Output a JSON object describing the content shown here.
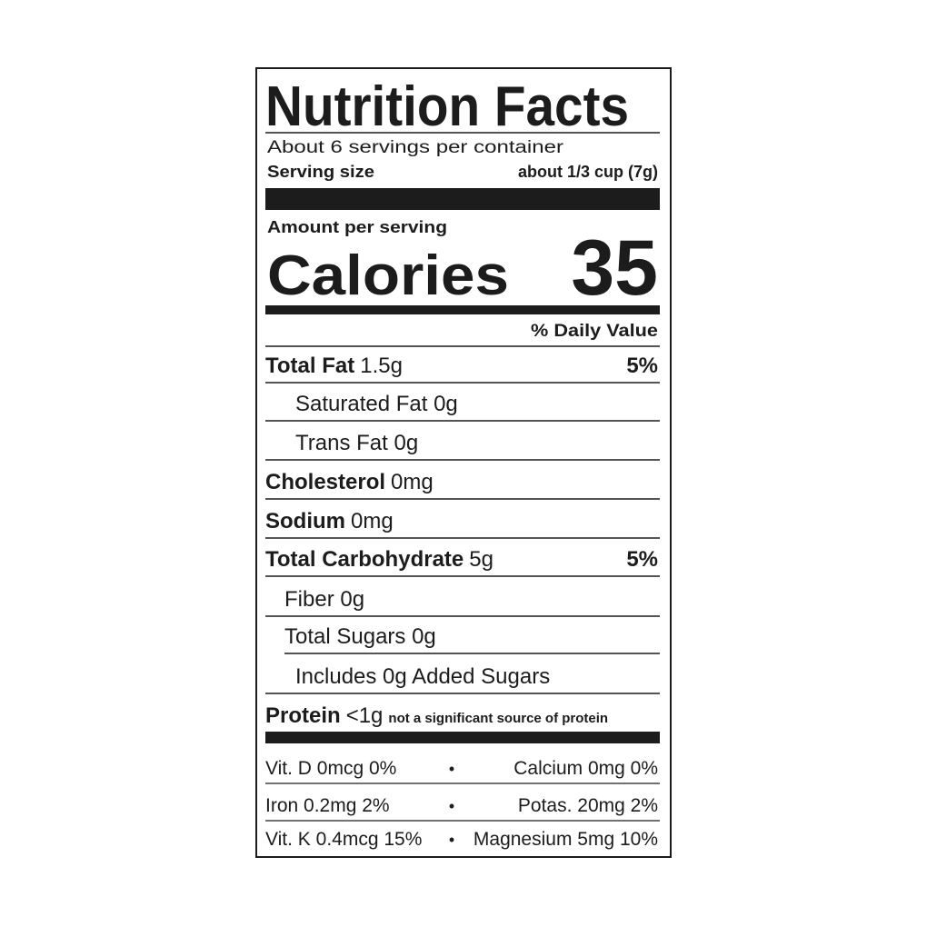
{
  "title": "Nutrition Facts",
  "servings": "About 6 servings per container",
  "serving_size": {
    "label": "Serving size",
    "value": "about 1/3 cup (7g)"
  },
  "amount_per_serving": "Amount per serving",
  "calories": {
    "label": "Calories",
    "value": "35"
  },
  "daily_value_header": "% Daily Value",
  "nutrients": [
    {
      "name": "Total Fat",
      "amount": "1.5g",
      "dv": "5%"
    },
    {
      "text": "Saturated Fat 0g"
    },
    {
      "text": "Trans Fat 0g"
    },
    {
      "name": "Cholesterol",
      "amount": "0mg"
    },
    {
      "name": "Sodium",
      "amount": "0mg"
    },
    {
      "name": "Total Carbohydrate",
      "amount": "5g",
      "dv": "5%"
    },
    {
      "text": "Fiber 0g"
    },
    {
      "text": "Total Sugars 0g"
    },
    {
      "text": "Includes 0g Added Sugars"
    }
  ],
  "protein": {
    "name": "Protein",
    "amount": "<1g",
    "note": "not a significant source of protein"
  },
  "vitamins": {
    "separator": "•",
    "rows": [
      {
        "left": "Vit. D 0mcg 0%",
        "right": "Calcium 0mg 0%"
      },
      {
        "left": "Iron 0.2mg 2%",
        "right": "Potas. 20mg 2%"
      },
      {
        "left": "Vit. K 0.4mcg 15%",
        "right": "Magnesium 5mg 10%"
      }
    ]
  }
}
